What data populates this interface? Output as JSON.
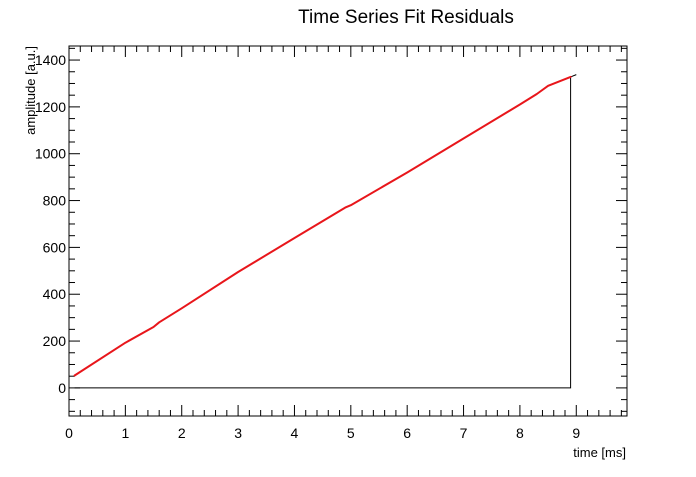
{
  "chart_data": {
    "type": "line",
    "title": "Time Series Fit Residuals",
    "xlabel": "time [ms]",
    "ylabel": "amplitude [a.u.]",
    "xlim": [
      0,
      9.9
    ],
    "ylim": [
      -120,
      1460
    ],
    "x_ticks": [
      0,
      1,
      2,
      3,
      4,
      5,
      6,
      7,
      8,
      9
    ],
    "y_ticks": [
      0,
      200,
      400,
      600,
      800,
      1000,
      1200,
      1400
    ],
    "grid": false,
    "legend": "none",
    "series": [
      {
        "color": "#e8161b",
        "x": [
          0.1,
          1.0,
          1.5,
          1.6,
          2.0,
          3.0,
          4.0,
          4.9,
          5.0,
          6.0,
          7.0,
          8.0,
          8.3,
          8.5,
          8.9
        ],
        "y": [
          53,
          193,
          260,
          280,
          340,
          495,
          640,
          770,
          780,
          920,
          1065,
          1210,
          1255,
          1290,
          1328
        ]
      }
    ],
    "frame": {
      "color": "#000000",
      "x": [
        0.1,
        8.9,
        8.9,
        9.0
      ],
      "y": [
        0,
        0,
        1328,
        1338
      ]
    }
  }
}
